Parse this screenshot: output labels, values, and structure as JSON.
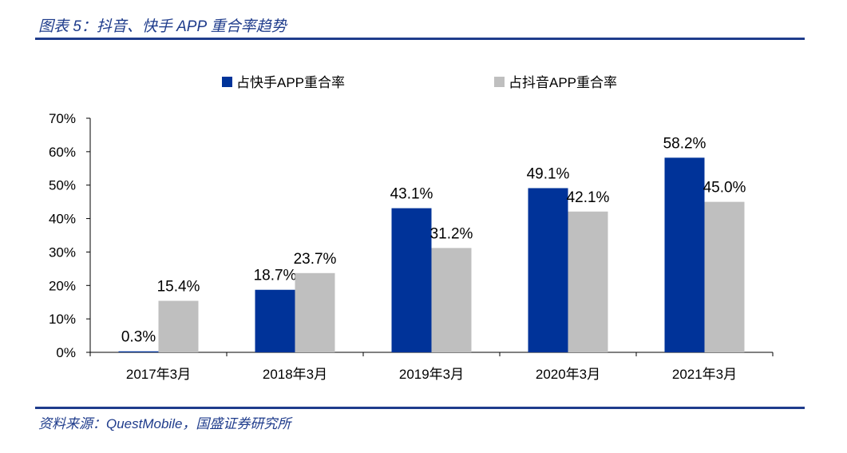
{
  "header": {
    "title": "图表 5：抖音、快手 APP 重合率趋势"
  },
  "footer": {
    "source": "资料来源：QuestMobile，国盛证券研究所"
  },
  "colors": {
    "accent": "#1f3c8c",
    "series1": "#003399",
    "series2": "#bfbfbf"
  },
  "chart_data": {
    "type": "bar",
    "categories": [
      "2017年3月",
      "2018年3月",
      "2019年3月",
      "2020年3月",
      "2021年3月"
    ],
    "series": [
      {
        "name": "占快手APP重合率",
        "values": [
          0.3,
          18.7,
          43.1,
          49.1,
          58.2
        ],
        "labels": [
          "0.3%",
          "18.7%",
          "43.1%",
          "49.1%",
          "58.2%"
        ],
        "color": "#003399"
      },
      {
        "name": "占抖音APP重合率",
        "values": [
          15.4,
          23.7,
          31.2,
          42.1,
          45.0
        ],
        "labels": [
          "15.4%",
          "23.7%",
          "31.2%",
          "42.1%",
          "45.0%"
        ],
        "color": "#bfbfbf"
      }
    ],
    "yticks": [
      "0%",
      "10%",
      "20%",
      "30%",
      "40%",
      "50%",
      "60%",
      "70%"
    ],
    "ylim": [
      0,
      70
    ],
    "legend_position": "top",
    "grid": false
  }
}
